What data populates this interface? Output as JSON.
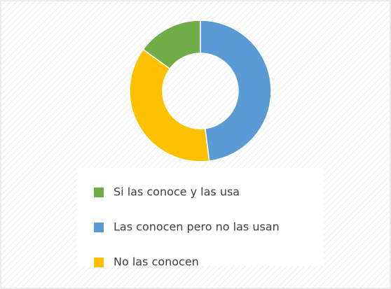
{
  "chart_data": {
    "type": "donut",
    "categories": [
      "Si las conoce y las usa",
      "Las conocen pero no las usan",
      "No las conocen"
    ],
    "values": [
      15,
      48,
      37
    ],
    "colors": [
      "#70ad47",
      "#5b9bd5",
      "#ffc000"
    ],
    "legend": "bottom"
  }
}
